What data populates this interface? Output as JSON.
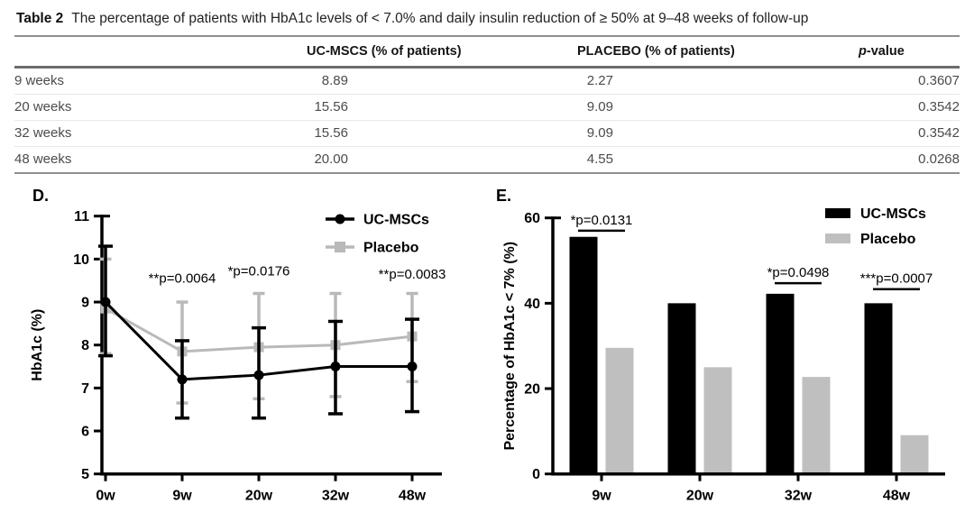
{
  "table": {
    "label": "Table 2",
    "caption": "The percentage of patients with HbA1c levels of < 7.0% and daily insulin reduction of ≥ 50% at 9–48 weeks of follow-up",
    "columns": [
      "",
      "UC-MSCS (% of patients)",
      "PLACEBO (% of patients)"
    ],
    "p_header": {
      "italic": "p",
      "rest": "-value"
    },
    "rows": [
      [
        "9 weeks",
        "8.89",
        "2.27",
        "0.3607"
      ],
      [
        "20 weeks",
        "15.56",
        "9.09",
        "0.3542"
      ],
      [
        "32 weeks",
        "15.56",
        "9.09",
        "0.3542"
      ],
      [
        "48 weeks",
        "20.00",
        "4.55",
        "0.0268"
      ]
    ]
  },
  "chart_data": [
    {
      "type": "line",
      "panel_label": "D.",
      "x_categories": [
        "0w",
        "9w",
        "20w",
        "32w",
        "48w"
      ],
      "xlabel": "",
      "ylabel": "HbA1c (%)",
      "ylim": [
        5,
        11
      ],
      "yticks": [
        5,
        6,
        7,
        8,
        9,
        10,
        11
      ],
      "grid": false,
      "legend_position": "top-right",
      "series": [
        {
          "name": "UC-MSCs",
          "color": "#000000",
          "marker": "circle",
          "values": [
            9.0,
            7.2,
            7.3,
            7.5,
            7.5
          ],
          "err_low": [
            7.75,
            6.3,
            6.3,
            6.4,
            6.45
          ],
          "err_high": [
            10.3,
            8.1,
            8.4,
            8.55,
            8.6
          ]
        },
        {
          "name": "Placebo",
          "color": "#b9b9b9",
          "marker": "square",
          "values": [
            8.85,
            7.85,
            7.95,
            8.0,
            8.2
          ],
          "err_low": [
            7.8,
            6.65,
            6.75,
            6.8,
            7.15
          ],
          "err_high": [
            10.0,
            9.0,
            9.2,
            9.2,
            9.2
          ]
        }
      ],
      "annotations": [
        {
          "text": "**p=0.0064",
          "x_index": 1,
          "y": 9.45
        },
        {
          "text": "*p=0.0176",
          "x_index": 2,
          "y": 9.62
        },
        {
          "text": "**p=0.0083",
          "x_index": 4,
          "y": 9.55
        }
      ]
    },
    {
      "type": "bar",
      "panel_label": "E.",
      "x_categories": [
        "9w",
        "20w",
        "32w",
        "48w"
      ],
      "xlabel": "",
      "ylabel": "Percentage of HbA1c < 7% (%)",
      "ylim": [
        0,
        60
      ],
      "yticks": [
        0,
        20,
        40,
        60
      ],
      "grid": false,
      "legend_position": "top-right",
      "series": [
        {
          "name": "UC-MSCs",
          "color": "#000000",
          "values": [
            55.56,
            40.0,
            42.22,
            40.0
          ]
        },
        {
          "name": "Placebo",
          "color": "#bfbfbf",
          "values": [
            29.55,
            25.0,
            22.73,
            9.09
          ]
        }
      ],
      "annotations": [
        {
          "text": "*p=0.0131",
          "group_index": 0,
          "line_y": 57.0
        },
        {
          "text": "*p=0.0498",
          "group_index": 2,
          "line_y": 44.7
        },
        {
          "text": "***p=0.0007",
          "group_index": 3,
          "line_y": 43.3
        }
      ]
    }
  ]
}
